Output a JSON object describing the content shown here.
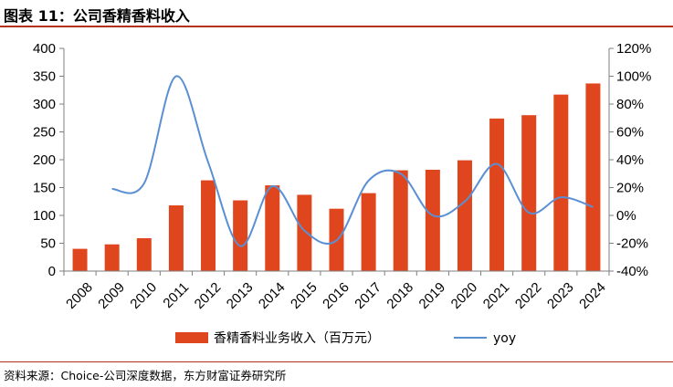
{
  "figure": {
    "title": "图表 11：公司香精香料收入",
    "source": "资料来源：Choice-公司深度数据，东方财富证券研究所"
  },
  "colors": {
    "bar": "#e0461d",
    "line": "#5b8fd4",
    "accent_rule": "#b4311e"
  },
  "chart_data": {
    "type": "bar",
    "categories": [
      "2008",
      "2009",
      "2010",
      "2011",
      "2012",
      "2013",
      "2014",
      "2015",
      "2016",
      "2017",
      "2018",
      "2019",
      "2020",
      "2021",
      "2022",
      "2023",
      "2024"
    ],
    "series": [
      {
        "name": "香精香料业务收入（百万元）",
        "type": "bar",
        "axis": "left",
        "values": [
          40,
          48,
          59,
          118,
          163,
          127,
          154,
          137,
          112,
          140,
          181,
          182,
          199,
          274,
          280,
          317,
          337
        ]
      },
      {
        "name": "yoy",
        "type": "line",
        "axis": "right",
        "smooth": true,
        "values": [
          null,
          19,
          23,
          100,
          38,
          -22,
          21,
          -11,
          -18,
          25,
          30,
          0,
          10,
          37,
          2,
          13,
          6
        ]
      }
    ],
    "y_left": {
      "min": 0,
      "max": 400,
      "step": 50,
      "ticks": [
        "0",
        "50",
        "100",
        "150",
        "200",
        "250",
        "300",
        "350",
        "400"
      ]
    },
    "y_right": {
      "min": -40,
      "max": 120,
      "step": 20,
      "ticks": [
        "-40%",
        "-20%",
        "0%",
        "20%",
        "40%",
        "60%",
        "80%",
        "100%",
        "120%"
      ]
    },
    "grid": false,
    "legend_position": "bottom",
    "title": "",
    "xlabel": "",
    "ylabel": ""
  }
}
